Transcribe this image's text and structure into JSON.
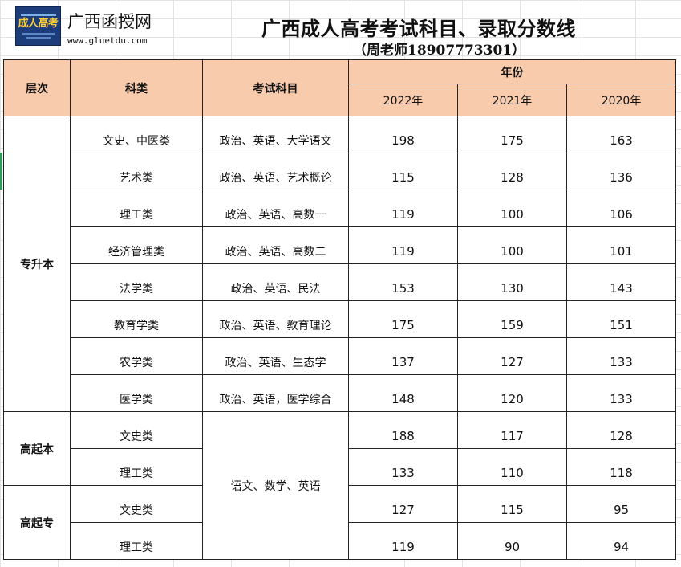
{
  "header": {
    "logo_text": "成人高考",
    "site_name": "广西函授网",
    "site_url": "www.gluetdu.com",
    "title": "广西成人高考考试科目、录取分数线",
    "subtitle": "（周老师18907773301）"
  },
  "table": {
    "col_level": "层次",
    "col_category": "科类",
    "col_subjects": "考试科目",
    "col_year_group": "年份",
    "years": [
      "2022年",
      "2021年",
      "2020年"
    ],
    "levels": {
      "zsb": "专升本",
      "gqb": "高起本",
      "gqz": "高起专"
    },
    "shared_subjects": "语文、数学、英语",
    "rows": [
      {
        "category": "文史、中医类",
        "subjects": "政治、英语、大学语文",
        "y2022": "198",
        "y2021": "175",
        "y2020": "163"
      },
      {
        "category": "艺术类",
        "subjects": "政治、英语、艺术概论",
        "y2022": "115",
        "y2021": "128",
        "y2020": "136"
      },
      {
        "category": "理工类",
        "subjects": "政治、英语、高数一",
        "y2022": "119",
        "y2021": "100",
        "y2020": "106"
      },
      {
        "category": "经济管理类",
        "subjects": "政治、英语、高数二",
        "y2022": "119",
        "y2021": "100",
        "y2020": "101"
      },
      {
        "category": "法学类",
        "subjects": "政治、英语、民法",
        "y2022": "153",
        "y2021": "130",
        "y2020": "143"
      },
      {
        "category": "教育学类",
        "subjects": "政治、英语、教育理论",
        "y2022": "175",
        "y2021": "159",
        "y2020": "151"
      },
      {
        "category": "农学类",
        "subjects": "政治、英语、生态学",
        "y2022": "137",
        "y2021": "127",
        "y2020": "133"
      },
      {
        "category": "医学类",
        "subjects": "政治、英语，医学综合",
        "y2022": "148",
        "y2021": "120",
        "y2020": "133"
      },
      {
        "category": "文史类",
        "subjects": "",
        "y2022": "188",
        "y2021": "117",
        "y2020": "128"
      },
      {
        "category": "理工类",
        "subjects": "",
        "y2022": "133",
        "y2021": "110",
        "y2020": "118"
      },
      {
        "category": "文史类",
        "subjects": "",
        "y2022": "127",
        "y2021": "115",
        "y2020": "95"
      },
      {
        "category": "理工类",
        "subjects": "",
        "y2022": "119",
        "y2021": "90",
        "y2020": "94"
      }
    ]
  }
}
